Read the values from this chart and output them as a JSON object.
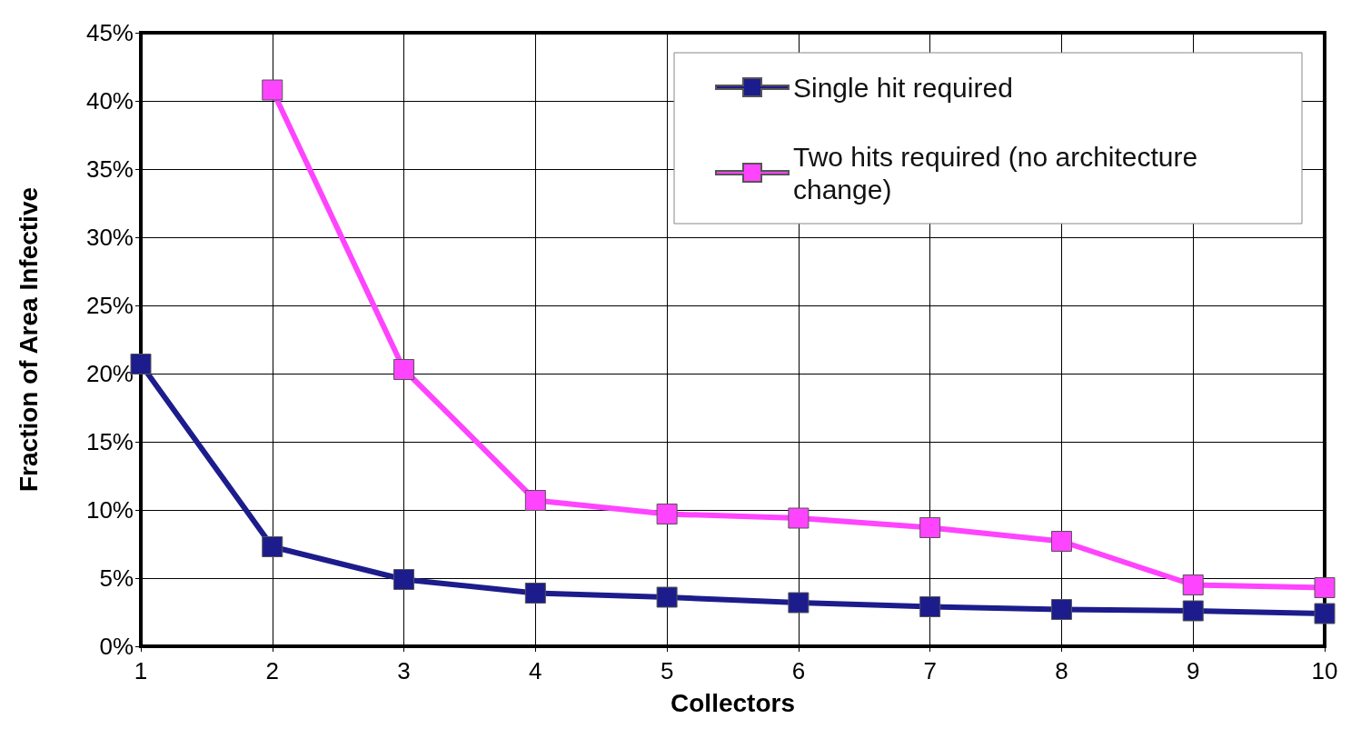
{
  "chart_data": {
    "type": "line",
    "xlabel": "Collectors",
    "ylabel": "Fraction of Area Infective",
    "x": [
      1,
      2,
      3,
      4,
      5,
      6,
      7,
      8,
      9,
      10
    ],
    "series": [
      {
        "name": "Single hit required",
        "color": "#1c1c8c",
        "values": [
          20.7,
          7.3,
          4.9,
          3.9,
          3.6,
          3.2,
          2.9,
          2.7,
          2.6,
          2.4
        ]
      },
      {
        "name": "Two hits required (no architecture change)",
        "color": "#ff44ff",
        "values": [
          null,
          40.8,
          20.3,
          10.7,
          9.7,
          9.4,
          8.7,
          7.7,
          4.5,
          4.3
        ]
      }
    ],
    "xlim": [
      1,
      10
    ],
    "xticks": [
      1,
      2,
      3,
      4,
      5,
      6,
      7,
      8,
      9,
      10
    ],
    "ylim": [
      0,
      45
    ],
    "yticks": [
      {
        "value": 0,
        "label": "0%"
      },
      {
        "value": 5,
        "label": "5%"
      },
      {
        "value": 10,
        "label": "10%"
      },
      {
        "value": 15,
        "label": "15%"
      },
      {
        "value": 20,
        "label": "20%"
      },
      {
        "value": 25,
        "label": "25%"
      },
      {
        "value": 30,
        "label": "30%"
      },
      {
        "value": 35,
        "label": "35%"
      },
      {
        "value": 40,
        "label": "40%"
      },
      {
        "value": 45,
        "label": "45%"
      }
    ],
    "grid": true,
    "legend": "top right",
    "marker": "square",
    "line_style": "solid"
  }
}
